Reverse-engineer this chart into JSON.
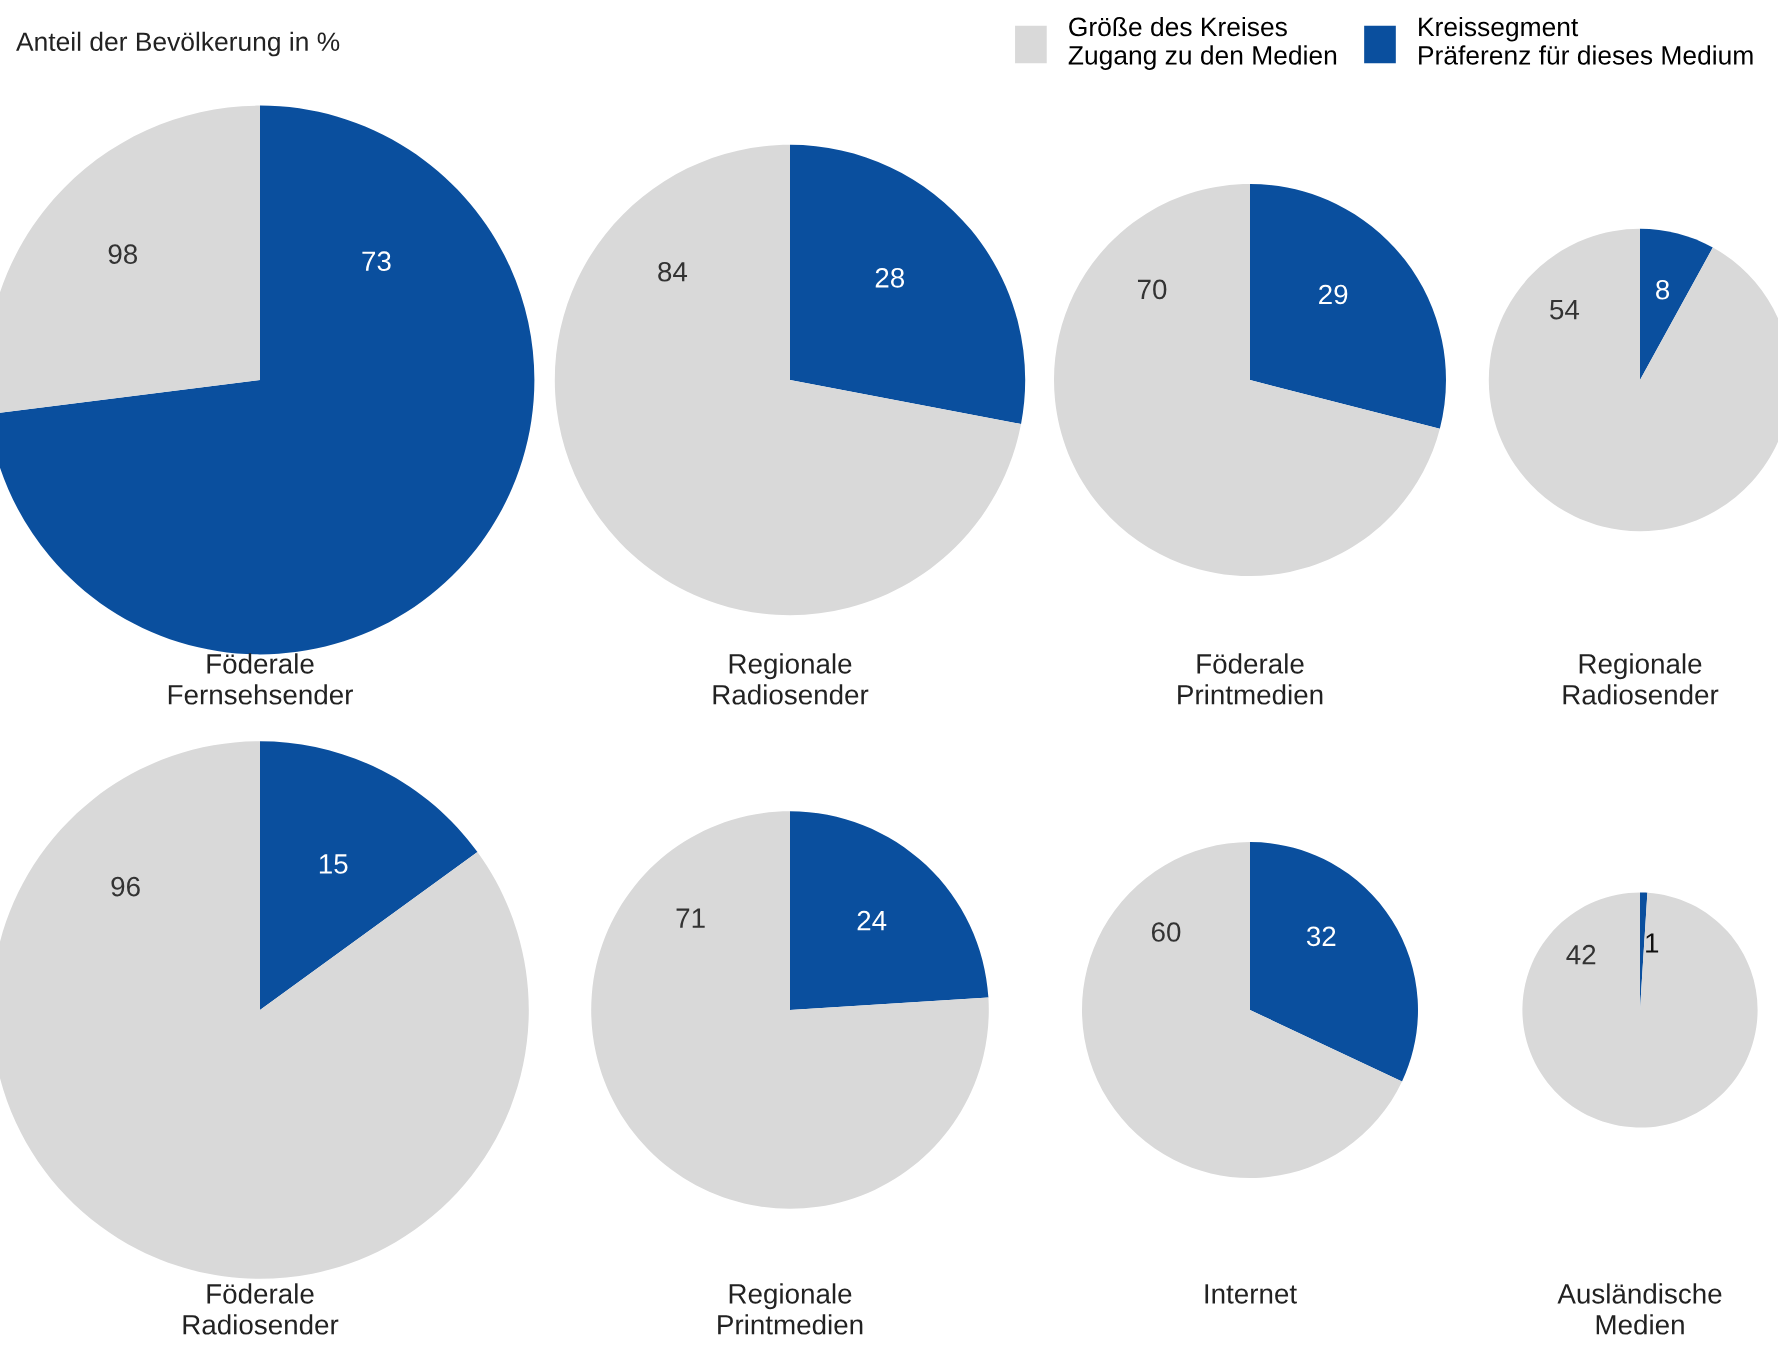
{
  "chart_data": [
    {
      "type": "pie",
      "title": "Föderale\nFernsehsender",
      "subtitle": "Anteil der Bevölkerung in %",
      "categories": [
        "Kreissegment\nPräferenz für dieses Medium",
        "Größe des Kreises\nZugang zu den Medien"
      ],
      "values": [
        73,
        27
      ],
      "annotations": [
        "98"
      ],
      "colors": [
        "#0a4f9e",
        "#d9d9d9"
      ],
      "value_labels": [
        "73",
        null
      ],
      "legend": "top right"
    },
    {
      "type": "pie",
      "title": "Regionale\nRadiosender",
      "values": [
        28,
        72
      ],
      "annotations": [
        "84"
      ],
      "colors": [
        "#0a4f9e",
        "#d9d9d9"
      ],
      "value_labels": [
        "28",
        null
      ]
    },
    {
      "type": "pie",
      "title": "Föderale\nPrintmedien",
      "values": [
        29,
        71
      ],
      "annotations": [
        "70"
      ],
      "colors": [
        "#0a4f9e",
        "#d9d9d9"
      ],
      "value_labels": [
        "29",
        null
      ]
    },
    {
      "type": "pie",
      "title": "Regionale\nRadiosender",
      "values": [
        8,
        92
      ],
      "annotations": [
        "54"
      ],
      "colors": [
        "#0a4f9e",
        "#d9d9d9"
      ],
      "value_labels": [
        "8",
        null
      ]
    },
    {
      "type": "pie",
      "title": "Föderale\nRadiosender",
      "values": [
        15,
        85
      ],
      "annotations": [
        "96"
      ],
      "colors": [
        "#0a4f9e",
        "#d9d9d9"
      ],
      "value_labels": [
        "15",
        null
      ]
    },
    {
      "type": "pie",
      "title": "Regionale\nPrintmedien",
      "values": [
        24,
        76
      ],
      "annotations": [
        "71"
      ],
      "colors": [
        "#0a4f9e",
        "#d9d9d9"
      ],
      "value_labels": [
        "24",
        null
      ]
    },
    {
      "type": "pie",
      "title": "Internet",
      "values": [
        32,
        68
      ],
      "annotations": [
        "60"
      ],
      "colors": [
        "#0a4f9e",
        "#d9d9d9"
      ],
      "value_labels": [
        "32",
        null
      ]
    },
    {
      "type": "pie",
      "title": "Ausländische\nMedien",
      "values": [
        1,
        99
      ],
      "annotations": [
        "42"
      ],
      "colors": [
        "#0a4f9e",
        "#d9d9d9"
      ],
      "value_labels": [
        "1",
        null
      ]
    }
  ]
}
